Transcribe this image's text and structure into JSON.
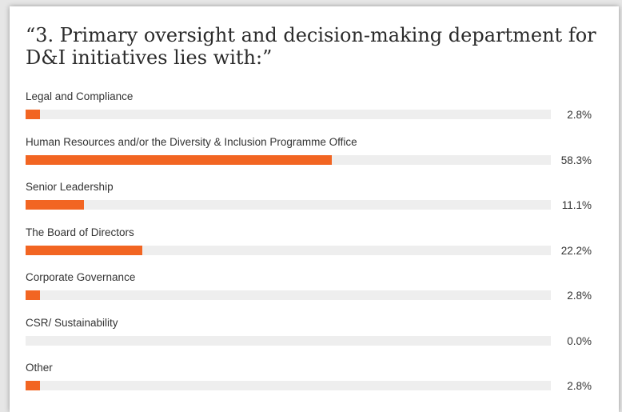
{
  "chart_data": {
    "type": "bar",
    "title": "“3. Primary oversight and decision-making department for D&I initiatives lies with:”",
    "orientation": "horizontal",
    "xlim": [
      0,
      100
    ],
    "categories": [
      "Legal and Compliance",
      "Human Resources and/or the Diversity & Inclusion Programme Office",
      "Senior Leadership",
      "The Board of Directors",
      "Corporate Governance",
      "CSR/ Sustainability",
      "Other"
    ],
    "values": [
      2.8,
      58.3,
      11.1,
      22.2,
      2.8,
      0.0,
      2.8
    ],
    "value_labels": [
      "2.8%",
      "58.3%",
      "11.1%",
      "22.2%",
      "2.8%",
      "0.0%",
      "2.8%"
    ],
    "colors": {
      "bar": "#f26522",
      "track": "#eeeeee"
    }
  }
}
